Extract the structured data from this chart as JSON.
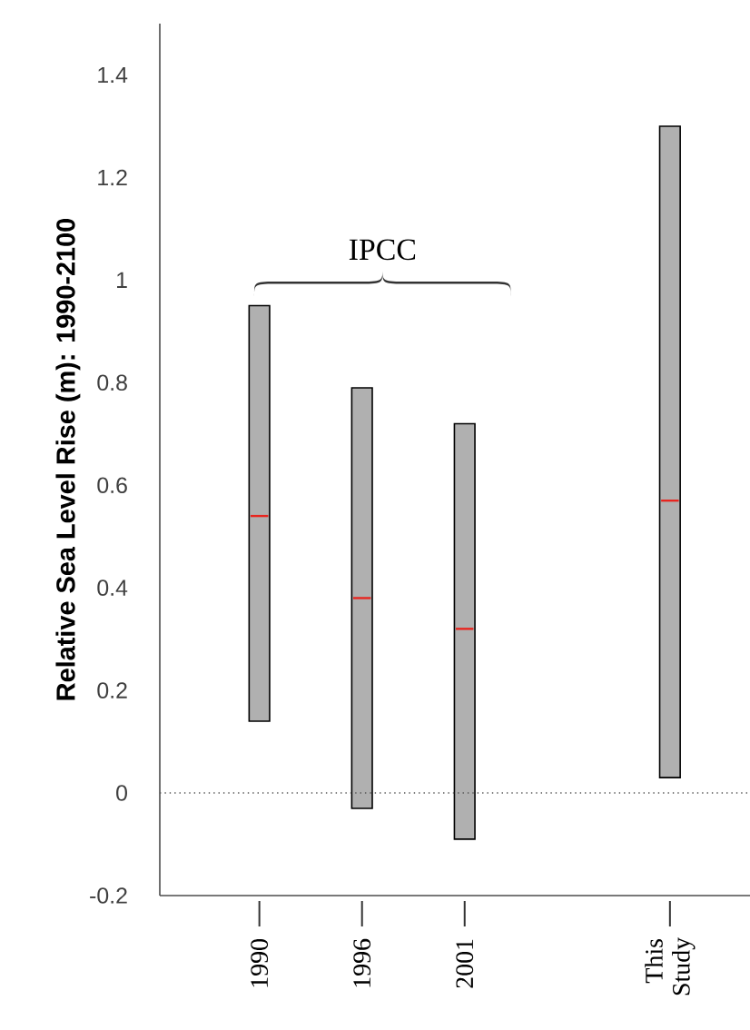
{
  "chart_data": {
    "type": "box",
    "ylabel": "Relative Sea Level Rise (m): 1990-2100",
    "categories": [
      "1990",
      "1996",
      "2001",
      null,
      "This Study"
    ],
    "series": [
      {
        "color": "#b0b0b0",
        "boxes": [
          {
            "low": 0.14,
            "q1": 0.14,
            "median": 0.54,
            "q3": 0.95,
            "high": 0.95
          },
          {
            "low": -0.03,
            "q1": -0.03,
            "median": 0.38,
            "q3": 0.79,
            "high": 0.79
          },
          {
            "low": -0.09,
            "q1": -0.09,
            "median": 0.32,
            "q3": 0.72,
            "high": 0.72
          },
          null,
          {
            "low": 0.03,
            "q1": 0.03,
            "median": 0.57,
            "q3": 1.3,
            "high": 1.3
          }
        ]
      }
    ],
    "ylim": [
      -0.2,
      1.5
    ],
    "yticks": [
      -0.2,
      0,
      0.2,
      0.4,
      0.6,
      0.8,
      1,
      1.2,
      1.4
    ],
    "ref_lines": [
      {
        "axis": "y",
        "value": 0,
        "line_style": "dotted",
        "color": "#555555"
      }
    ],
    "annotations": [
      "IPCC"
    ],
    "grid": false
  }
}
